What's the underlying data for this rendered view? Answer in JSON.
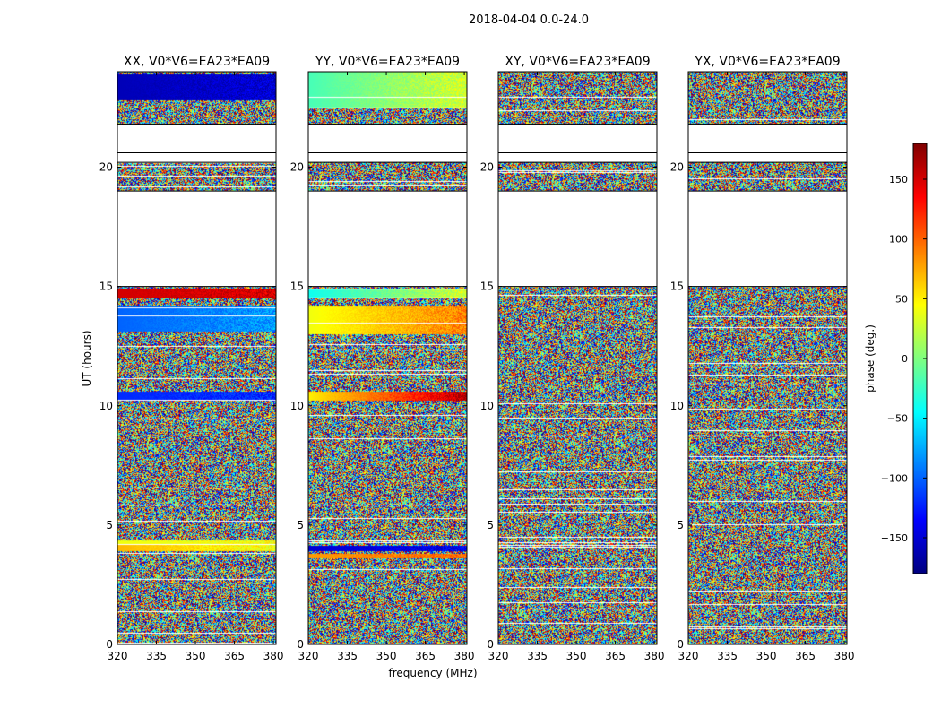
{
  "figure": {
    "suptitle": "2018-04-04 0.0-24.0",
    "ylabel": "UT (hours)",
    "xlabel": "frequency (MHz)"
  },
  "colorbar": {
    "label": "phase (deg.)",
    "range": [
      -180,
      180
    ],
    "ticks": [
      -150,
      -100,
      -50,
      0,
      50,
      100,
      150
    ],
    "tick_labels": [
      "−150",
      "−100",
      "−50",
      "0",
      "50",
      "100",
      "150"
    ],
    "colormap": [
      "#00007f",
      "#0000ff",
      "#007fff",
      "#00ffff",
      "#7fff7f",
      "#ffff00",
      "#ff7f00",
      "#ff0000",
      "#7f0000"
    ]
  },
  "chart_data": [
    {
      "type": "heatmap",
      "title": "XX, V0*V6=EA23*EA09",
      "quantity": "phase (deg.)",
      "x_range": [
        320,
        381
      ],
      "x_ticks": [
        320,
        335,
        350,
        365,
        380
      ],
      "y_range": [
        0,
        24
      ],
      "y_ticks": [
        0,
        5,
        10,
        15,
        20
      ],
      "xlabel": "",
      "ylabel": "UT (hours)",
      "no_data_ut": [
        [
          15.0,
          19.0
        ],
        [
          20.2,
          20.6
        ],
        [
          20.6,
          21.8
        ]
      ],
      "coherent_bands": [
        {
          "ut": [
            10.2,
            10.6
          ],
          "phase_start": -120,
          "phase_end": -120
        },
        {
          "ut": [
            3.9,
            4.2
          ],
          "phase_start": 70,
          "phase_end": 40
        },
        {
          "ut": [
            4.2,
            4.35
          ],
          "phase_start": 40,
          "phase_end": 40
        },
        {
          "ut": [
            13.1,
            14.2
          ],
          "phase_start": -100,
          "phase_end": -80
        },
        {
          "ut": [
            14.5,
            14.9
          ],
          "phase_start": 150,
          "phase_end": 150
        },
        {
          "ut": [
            22.8,
            23.9
          ],
          "phase_start": -160,
          "phase_end": -150
        }
      ]
    },
    {
      "type": "heatmap",
      "title": "YY, V0*V6=EA23*EA09",
      "quantity": "phase (deg.)",
      "x_range": [
        320,
        381
      ],
      "x_ticks": [
        320,
        335,
        350,
        365,
        380
      ],
      "y_range": [
        0,
        24
      ],
      "y_ticks": [
        0,
        5,
        10,
        15,
        20
      ],
      "xlabel": "frequency (MHz)",
      "ylabel": "",
      "no_data_ut": [
        [
          15.0,
          19.0
        ],
        [
          20.2,
          20.6
        ],
        [
          20.6,
          21.8
        ]
      ],
      "coherent_bands": [
        {
          "ut": [
            10.2,
            10.6
          ],
          "phase_start": 50,
          "phase_end": 160
        },
        {
          "ut": [
            3.9,
            4.15
          ],
          "phase_start": -150,
          "phase_end": -140
        },
        {
          "ut": [
            3.6,
            3.8
          ],
          "phase_start": 80,
          "phase_end": 100
        },
        {
          "ut": [
            13.0,
            14.2
          ],
          "phase_start": 40,
          "phase_end": 90
        },
        {
          "ut": [
            14.5,
            14.9
          ],
          "phase_start": -40,
          "phase_end": 30
        },
        {
          "ut": [
            22.5,
            24.0
          ],
          "phase_start": -20,
          "phase_end": 30
        }
      ]
    },
    {
      "type": "heatmap",
      "title": "XY, V0*V6=EA23*EA09",
      "quantity": "phase (deg.)",
      "x_range": [
        320,
        381
      ],
      "x_ticks": [
        320,
        335,
        350,
        365,
        380
      ],
      "y_range": [
        0,
        24
      ],
      "y_ticks": [
        0,
        5,
        10,
        15,
        20
      ],
      "xlabel": "",
      "ylabel": "",
      "no_data_ut": [
        [
          15.0,
          19.0
        ],
        [
          20.2,
          20.6
        ],
        [
          20.6,
          21.8
        ]
      ],
      "coherent_bands": []
    },
    {
      "type": "heatmap",
      "title": "YX, V0*V6=EA23*EA09",
      "quantity": "phase (deg.)",
      "x_range": [
        320,
        381
      ],
      "x_ticks": [
        320,
        335,
        350,
        365,
        380
      ],
      "y_range": [
        0,
        24
      ],
      "y_ticks": [
        0,
        5,
        10,
        15,
        20
      ],
      "xlabel": "",
      "ylabel": "",
      "no_data_ut": [
        [
          15.0,
          19.0
        ],
        [
          20.2,
          20.6
        ],
        [
          20.6,
          21.8
        ]
      ],
      "coherent_bands": []
    }
  ]
}
